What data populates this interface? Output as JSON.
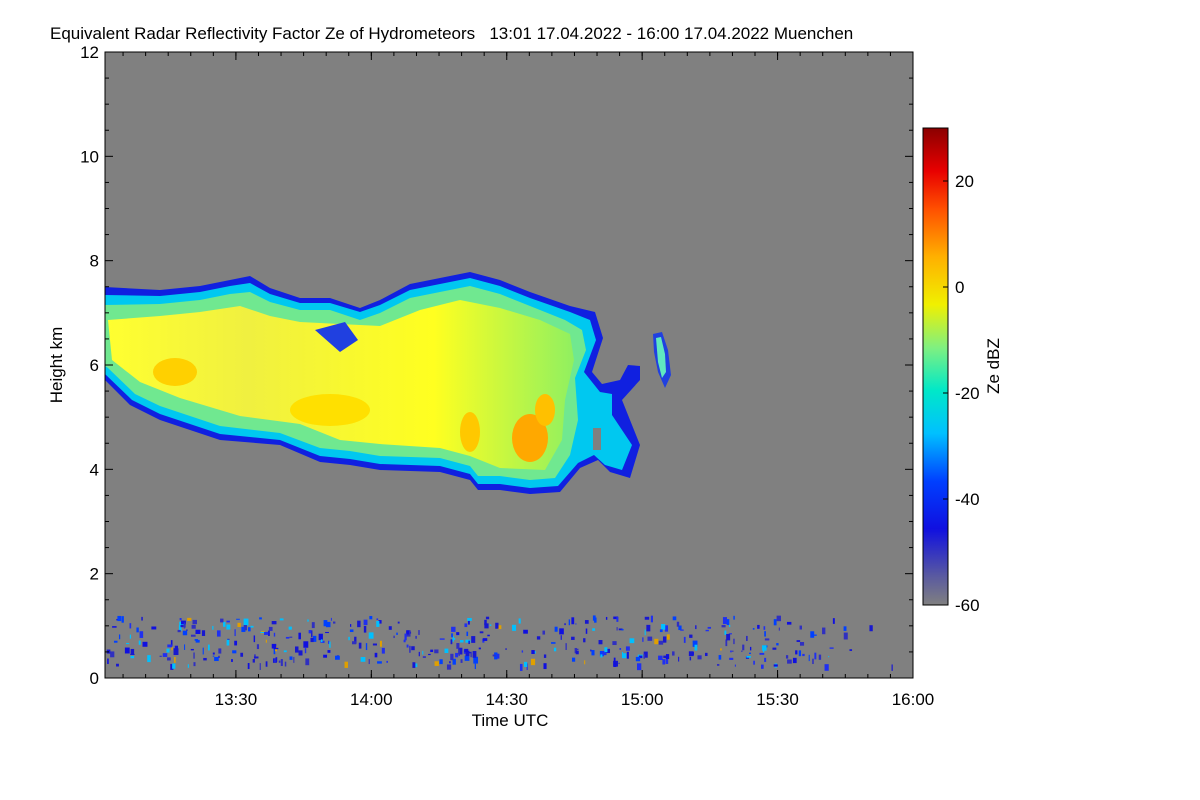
{
  "chart_data": {
    "type": "heatmap",
    "title": "Equivalent Radar Reflectivity Factor Ze of Hydrometeors   13:01 17.04.2022 - 16:00 17.04.2022 Muenchen",
    "xlabel": "Time UTC",
    "ylabel": "Height km",
    "x_range": [
      "13:01",
      "16:00"
    ],
    "x_ticks": [
      "13:30",
      "14:00",
      "14:30",
      "15:00",
      "15:30",
      "16:00"
    ],
    "y_range": [
      0,
      12
    ],
    "y_ticks": [
      0,
      2,
      4,
      6,
      8,
      10,
      12
    ],
    "colorbar": {
      "label": "Ze dBZ",
      "range": [
        -60,
        30
      ],
      "ticks": [
        20,
        0,
        -20,
        -40,
        -60
      ]
    },
    "background_color": "#808080",
    "features": [
      {
        "name": "main cloud",
        "time_start": "13:01",
        "time_end": "14:57",
        "base_km_min": 3.7,
        "top_km_max": 7.6,
        "ze_dbz_max": 5
      },
      {
        "name": "trailing cloud",
        "time_start": "14:50",
        "time_end": "14:58",
        "base_km": 3.9,
        "top_km": 6.0
      },
      {
        "name": "isolated patch",
        "time_start": "15:03",
        "time_end": "15:05",
        "base_km": 5.6,
        "top_km": 6.6
      },
      {
        "name": "low-level clutter",
        "time_start": "13:01",
        "time_end": "16:00",
        "base_km": 0.2,
        "top_km": 1.3
      }
    ]
  }
}
